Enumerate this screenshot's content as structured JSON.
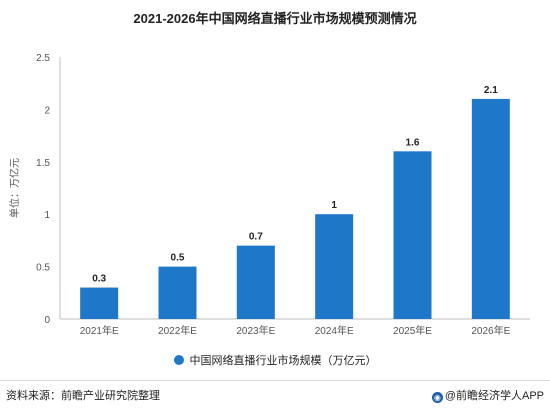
{
  "chart_data": {
    "type": "bar",
    "title": "2021-2026年中国网络直播行业市场规模预测情况",
    "categories": [
      "2021年E",
      "2022年E",
      "2023年E",
      "2024年E",
      "2025年E",
      "2026年E"
    ],
    "series": [
      {
        "name": "中国网络直播行业市场规模（万亿元）",
        "values": [
          0.3,
          0.5,
          0.7,
          1,
          1.6,
          2.1
        ]
      }
    ],
    "data_labels": [
      "0.3",
      "0.5",
      "0.7",
      "1",
      "1.6",
      "2.1"
    ],
    "ylabel": "单位：万亿元",
    "ylim": [
      0,
      2.5
    ],
    "yticks": [
      "0",
      "0.5",
      "1",
      "1.5",
      "2",
      "2.5"
    ],
    "grid": false,
    "legend_position": "bottom",
    "bar_color": "#1f77c9",
    "axis_color": "#bfbfbf"
  },
  "footer": {
    "source": "资料来源：前瞻产业研究院整理",
    "credit_icon": "qianzhan-logo-icon",
    "credit": "@前瞻经济学人APP"
  }
}
